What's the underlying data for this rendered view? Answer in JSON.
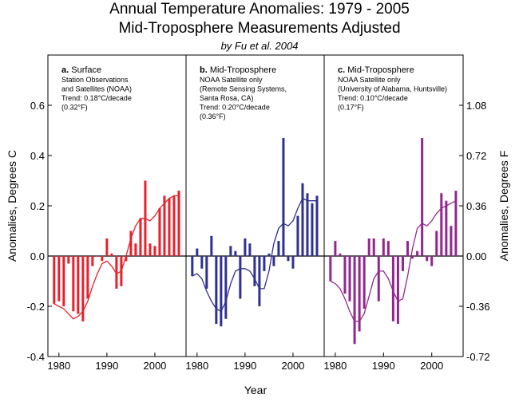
{
  "title": "Annual Temperature Anomalies: 1979 - 2005",
  "subtitle": "Mid-Troposphere Measurements Adjusted",
  "attribution": "by Fu et al. 2004",
  "chart_data": {
    "type": "bar",
    "xlabel": "Year",
    "ylabel_left": "Anomalies, Degrees C",
    "ylabel_right": "Anomalies, Degrees F",
    "ylim": [
      -0.4,
      0.8
    ],
    "yticks_left": [
      "-0.4",
      "-0.2",
      "0.0",
      "0.2",
      "0.4",
      "0.6"
    ],
    "yticks_right": [
      "-0.72",
      "-0.36",
      "0.00",
      "0.36",
      "0.72",
      "1.08"
    ],
    "xticks": [
      "1980",
      "1990",
      "2000"
    ],
    "grid": false,
    "panels": [
      {
        "letter": "a.",
        "name": "Surface",
        "notes": [
          "Station Observations",
          "and Satellites (NOAA)",
          "Trend: 0.18°C/decade",
          "(0.32°F)"
        ],
        "color": "#e8202a",
        "years": [
          1979,
          1980,
          1981,
          1982,
          1983,
          1984,
          1985,
          1986,
          1987,
          1988,
          1989,
          1990,
          1991,
          1992,
          1993,
          1994,
          1995,
          1996,
          1997,
          1998,
          1999,
          2000,
          2001,
          2002,
          2003,
          2004,
          2005
        ],
        "values": [
          -0.19,
          -0.18,
          -0.2,
          -0.03,
          -0.22,
          -0.23,
          -0.26,
          -0.17,
          -0.04,
          0.0,
          -0.02,
          0.07,
          0.01,
          -0.13,
          -0.12,
          -0.02,
          0.1,
          0.05,
          0.15,
          0.3,
          0.05,
          0.04,
          0.19,
          0.24,
          0.23,
          0.24,
          0.26
        ],
        "smooth": [
          -0.19,
          -0.2,
          -0.21,
          -0.23,
          -0.25,
          -0.24,
          -0.22,
          -0.18,
          -0.12,
          -0.07,
          -0.03,
          -0.02,
          -0.04,
          -0.07,
          -0.06,
          0.0,
          0.07,
          0.12,
          0.15,
          0.15,
          0.14,
          0.16,
          0.19,
          0.21,
          0.23,
          0.24,
          0.24
        ]
      },
      {
        "letter": "b.",
        "name": "Mid-Troposphere",
        "notes": [
          "NOAA Satellite only",
          "(Remote Sensing Systems,",
          "Santa Rosa, CA)",
          "Trend: 0.20°C/decade",
          "(0.36°F)"
        ],
        "color": "#2e3192",
        "years": [
          1979,
          1980,
          1981,
          1982,
          1983,
          1984,
          1985,
          1986,
          1987,
          1988,
          1989,
          1990,
          1991,
          1992,
          1993,
          1994,
          1995,
          1996,
          1997,
          1998,
          1999,
          2000,
          2001,
          2002,
          2003,
          2004,
          2005
        ],
        "values": [
          -0.08,
          0.03,
          -0.05,
          -0.13,
          0.08,
          -0.27,
          -0.28,
          -0.25,
          0.04,
          0.02,
          -0.17,
          0.07,
          0.05,
          -0.12,
          -0.2,
          -0.06,
          0.01,
          -0.04,
          0.06,
          0.47,
          -0.02,
          -0.05,
          0.16,
          0.29,
          0.25,
          0.21,
          0.24
        ],
        "smooth": [
          -0.08,
          -0.07,
          -0.09,
          -0.14,
          -0.18,
          -0.21,
          -0.22,
          -0.18,
          -0.11,
          -0.06,
          -0.05,
          -0.05,
          -0.06,
          -0.09,
          -0.13,
          -0.13,
          -0.06,
          0.05,
          0.11,
          0.13,
          0.12,
          0.14,
          0.19,
          0.23,
          0.22,
          0.22,
          0.22
        ]
      },
      {
        "letter": "c.",
        "name": "Mid-Troposphere",
        "notes": [
          "NOAA Satellite only",
          "(University of Alabama, Huntsville)",
          "Trend: 0.10°C/decade",
          "(0.17°F)"
        ],
        "color": "#92278f",
        "years": [
          1979,
          1980,
          1981,
          1982,
          1983,
          1984,
          1985,
          1986,
          1987,
          1988,
          1989,
          1990,
          1991,
          1992,
          1993,
          1994,
          1995,
          1996,
          1997,
          1998,
          1999,
          2000,
          2001,
          2002,
          2003,
          2004,
          2005
        ],
        "values": [
          -0.1,
          0.06,
          0.01,
          -0.15,
          -0.18,
          -0.35,
          -0.3,
          -0.21,
          0.07,
          0.07,
          -0.18,
          0.07,
          0.06,
          -0.26,
          -0.27,
          -0.06,
          0.06,
          -0.01,
          0.02,
          0.47,
          -0.02,
          -0.04,
          0.1,
          0.25,
          0.22,
          0.12,
          0.26
        ],
        "smooth": [
          -0.1,
          -0.11,
          -0.13,
          -0.17,
          -0.22,
          -0.26,
          -0.26,
          -0.23,
          -0.16,
          -0.09,
          -0.06,
          -0.06,
          -0.09,
          -0.14,
          -0.18,
          -0.17,
          -0.08,
          0.03,
          0.11,
          0.13,
          0.12,
          0.14,
          0.17,
          0.19,
          0.2,
          0.21,
          0.22
        ]
      }
    ]
  }
}
